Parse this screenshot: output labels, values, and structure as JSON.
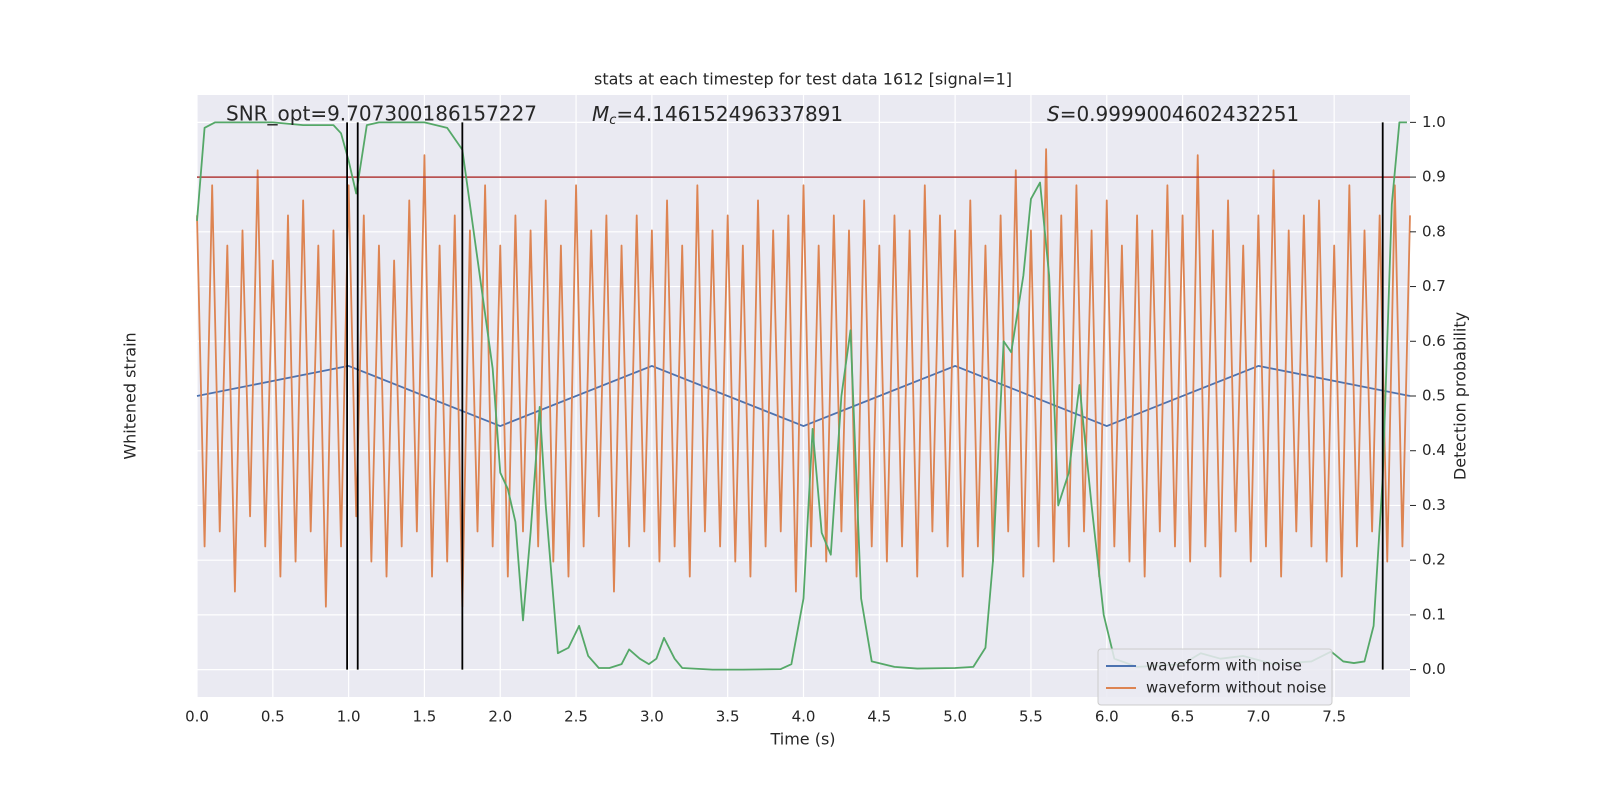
{
  "chart_data": {
    "type": "line",
    "title": "stats at each timestep for test data 1612 [signal=1]",
    "annotations": {
      "snr": "SNR_opt=9.707300186157227",
      "mc_symbol": "M",
      "mc_subscript": "c",
      "mc_value": "=4.146152496337891",
      "s_symbol": "S",
      "s_value": "=0.9999004602432251"
    },
    "xlabel": "Time (s)",
    "ylabel": "Whitened strain",
    "y2label": "Detection probability",
    "xlim": [
      0,
      8
    ],
    "ylim": [
      -1,
      1
    ],
    "y2lim": [
      -0.05,
      1.05
    ],
    "xticks": [
      {
        "value": 0,
        "label": "0.0"
      },
      0.5,
      {
        "value": 1,
        "label": "1.0"
      },
      1.5,
      {
        "value": 2,
        "label": "2.0"
      },
      2.5,
      {
        "value": 3,
        "label": "3.0"
      },
      3.5,
      {
        "value": 4,
        "label": "4.0"
      },
      4.5,
      {
        "value": 5,
        "label": "5.0"
      },
      5.5,
      {
        "value": 6,
        "label": "6.0"
      },
      6.5,
      {
        "value": 7,
        "label": "7.0"
      },
      7.5
    ],
    "y2ticks": [
      {
        "value": 0,
        "label": "0.0"
      },
      0.1,
      0.2,
      0.3,
      0.4,
      0.5,
      0.6,
      0.7,
      0.8,
      0.9,
      {
        "value": 1,
        "label": "1.0"
      }
    ],
    "grid": true,
    "legend": "lower right",
    "series": [
      {
        "name": "waveform with noise",
        "color": "#4c72b0",
        "axis": "y",
        "x": [
          0,
          1,
          2,
          3,
          4,
          5,
          6,
          7,
          8
        ],
        "values": [
          0,
          0.1,
          -0.1,
          0.1,
          -0.1,
          0.1,
          -0.1,
          0.1,
          0
        ]
      },
      {
        "name": "waveform without noise",
        "color": "#dd8452",
        "axis": "y",
        "x": [
          0,
          0.05,
          0.1,
          0.15,
          0.2,
          0.25,
          0.3,
          0.35,
          0.4,
          0.45,
          0.5,
          0.55,
          0.6,
          0.65,
          0.7,
          0.75,
          0.8,
          0.85,
          0.9,
          0.95,
          1,
          1.05,
          1.1,
          1.15,
          1.2,
          1.25,
          1.3,
          1.35,
          1.4,
          1.45,
          1.5,
          1.55,
          1.6,
          1.65,
          1.7,
          1.75,
          1.8,
          1.85,
          1.9,
          1.95,
          2,
          2.05,
          2.1,
          2.15,
          2.2,
          2.25,
          2.3,
          2.35,
          2.4,
          2.45,
          2.5,
          2.55,
          2.6,
          2.65,
          2.7,
          2.75,
          2.8,
          2.85,
          2.9,
          2.95,
          3,
          3.05,
          3.1,
          3.15,
          3.2,
          3.25,
          3.3,
          3.35,
          3.4,
          3.45,
          3.5,
          3.55,
          3.6,
          3.65,
          3.7,
          3.75,
          3.8,
          3.85,
          3.9,
          3.95,
          4,
          4.05,
          4.1,
          4.15,
          4.2,
          4.25,
          4.3,
          4.35,
          4.4,
          4.45,
          4.5,
          4.55,
          4.6,
          4.65,
          4.7,
          4.75,
          4.8,
          4.85,
          4.9,
          4.95,
          5,
          5.05,
          5.1,
          5.15,
          5.2,
          5.25,
          5.3,
          5.35,
          5.4,
          5.45,
          5.5,
          5.55,
          5.6,
          5.65,
          5.7,
          5.75,
          5.8,
          5.85,
          5.9,
          5.95,
          6,
          6.05,
          6.1,
          6.15,
          6.2,
          6.25,
          6.3,
          6.35,
          6.4,
          6.45,
          6.5,
          6.55,
          6.6,
          6.65,
          6.7,
          6.75,
          6.8,
          6.85,
          6.9,
          6.95,
          7,
          7.05,
          7.1,
          7.15,
          7.2,
          7.25,
          7.3,
          7.35,
          7.4,
          7.45,
          7.5,
          7.55,
          7.6,
          7.65,
          7.7,
          7.75,
          7.8,
          7.85,
          7.9,
          7.95,
          8
        ],
        "values": [
          0.6,
          -0.5,
          0.7,
          -0.45,
          0.5,
          -0.65,
          0.55,
          -0.4,
          0.75,
          -0.5,
          0.45,
          -0.6,
          0.6,
          -0.55,
          0.65,
          -0.45,
          0.5,
          -0.7,
          0.55,
          -0.5,
          0.7,
          -0.4,
          0.6,
          -0.55,
          0.5,
          -0.6,
          0.45,
          -0.5,
          0.65,
          -0.45,
          0.8,
          -0.6,
          0.5,
          -0.55,
          0.6,
          -0.7,
          0.55,
          -0.45,
          0.7,
          -0.5,
          0.5,
          -0.6,
          0.6,
          -0.45,
          0.55,
          -0.5,
          0.65,
          -0.55,
          0.5,
          -0.6,
          0.7,
          -0.5,
          0.55,
          -0.4,
          0.6,
          -0.65,
          0.5,
          -0.5,
          0.6,
          -0.45,
          0.55,
          -0.55,
          0.65,
          -0.5,
          0.5,
          -0.6,
          0.7,
          -0.45,
          0.55,
          -0.5,
          0.6,
          -0.55,
          0.5,
          -0.6,
          0.65,
          -0.5,
          0.55,
          -0.45,
          0.6,
          -0.65,
          0.7,
          -0.5,
          0.5,
          -0.55,
          0.6,
          -0.45,
          0.55,
          -0.6,
          0.65,
          -0.5,
          0.5,
          -0.55,
          0.6,
          -0.5,
          0.55,
          -0.6,
          0.7,
          -0.45,
          0.6,
          -0.5,
          0.55,
          -0.6,
          0.65,
          -0.5,
          0.5,
          -0.55,
          0.6,
          -0.45,
          0.75,
          -0.6,
          0.55,
          -0.5,
          0.82,
          -0.55,
          0.6,
          -0.5,
          0.7,
          -0.45,
          0.55,
          -0.6,
          0.65,
          -0.5,
          0.5,
          -0.55,
          0.6,
          -0.6,
          0.55,
          -0.45,
          0.7,
          -0.5,
          0.6,
          -0.55,
          0.8,
          -0.5,
          0.55,
          -0.6,
          0.65,
          -0.45,
          0.5,
          -0.55,
          0.6,
          -0.5,
          0.75,
          -0.6,
          0.55,
          -0.45,
          0.6,
          -0.5,
          0.65,
          -0.55,
          0.5,
          -0.6,
          0.7,
          -0.5,
          0.55,
          -0.45,
          0.6,
          -0.55,
          0.7,
          -0.5,
          0.6
        ]
      },
      {
        "name": "detection probability",
        "color": "#55a868",
        "axis": "y2",
        "in_legend": false,
        "x": [
          0,
          0.05,
          0.12,
          0.25,
          0.5,
          0.7,
          0.9,
          0.95,
          1,
          1.05,
          1.12,
          1.2,
          1.5,
          1.65,
          1.75,
          1.85,
          1.95,
          2,
          2.05,
          2.1,
          2.15,
          2.2,
          2.26,
          2.3,
          2.38,
          2.45,
          2.52,
          2.58,
          2.65,
          2.72,
          2.8,
          2.85,
          2.92,
          2.98,
          3.03,
          3.08,
          3.15,
          3.2,
          3.4,
          3.6,
          3.85,
          3.92,
          4,
          4.06,
          4.12,
          4.18,
          4.25,
          4.31,
          4.38,
          4.45,
          4.6,
          4.75,
          5,
          5.12,
          5.2,
          5.25,
          5.32,
          5.37,
          5.45,
          5.5,
          5.56,
          5.62,
          5.68,
          5.75,
          5.82,
          5.9,
          5.98,
          6.05,
          6.2,
          6.5,
          6.62,
          6.75,
          6.9,
          7.1,
          7.35,
          7.48,
          7.56,
          7.63,
          7.7,
          7.76,
          7.82,
          7.88,
          7.93,
          7.98
        ],
        "values": [
          0.82,
          0.99,
          1,
          1,
          1,
          0.995,
          0.995,
          0.98,
          0.93,
          0.87,
          0.995,
          1,
          1,
          0.99,
          0.95,
          0.75,
          0.55,
          0.36,
          0.33,
          0.27,
          0.09,
          0.25,
          0.48,
          0.3,
          0.03,
          0.04,
          0.08,
          0.025,
          0.003,
          0.003,
          0.01,
          0.037,
          0.02,
          0.01,
          0.02,
          0.058,
          0.02,
          0.003,
          0,
          0,
          0.001,
          0.01,
          0.13,
          0.44,
          0.25,
          0.21,
          0.5,
          0.62,
          0.13,
          0.015,
          0.005,
          0.002,
          0.003,
          0.005,
          0.04,
          0.2,
          0.6,
          0.58,
          0.72,
          0.86,
          0.89,
          0.72,
          0.3,
          0.36,
          0.52,
          0.3,
          0.1,
          0.02,
          0.005,
          0.01,
          0.03,
          0.02,
          0.025,
          0.01,
          0.015,
          0.033,
          0.015,
          0.012,
          0.015,
          0.08,
          0.35,
          0.85,
          1,
          1
        ]
      }
    ],
    "threshold": {
      "value": 0.9,
      "color": "#b03a3a"
    },
    "vlines": {
      "x": [
        0.99,
        1.06,
        1.75,
        7.82
      ],
      "span": [
        0,
        1
      ],
      "color": "#000000"
    }
  }
}
